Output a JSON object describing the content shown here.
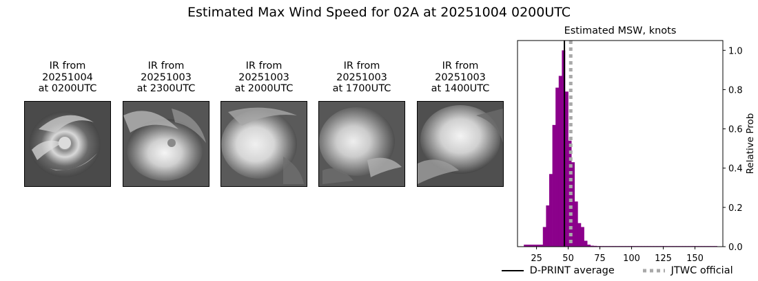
{
  "figure": {
    "title": "Estimated Max Wind Speed for 02A at 20251004 0200UTC"
  },
  "ir_panels": [
    {
      "title": "IR from\n20251004\nat 0200UTC",
      "image": "ir-satellite-image-1"
    },
    {
      "title": "IR from\n20251003\nat 2300UTC",
      "image": "ir-satellite-image-2"
    },
    {
      "title": "IR from\n20251003\nat 2000UTC",
      "image": "ir-satellite-image-3"
    },
    {
      "title": "IR from\n20251003\nat 1700UTC",
      "image": "ir-satellite-image-4"
    },
    {
      "title": "IR from\n20251003\nat 1400UTC",
      "image": "ir-satellite-image-5"
    }
  ],
  "chart_data": {
    "type": "bar",
    "title": "Estimated MSW, knots",
    "xlabel": "",
    "ylabel": "Relative Prob",
    "xlim": [
      10,
      172
    ],
    "ylim": [
      0,
      1.05
    ],
    "xticks": [
      25,
      50,
      75,
      100,
      125,
      150
    ],
    "yticks": [
      0.0,
      0.2,
      0.4,
      0.6,
      0.8,
      1.0
    ],
    "ytick_labels": [
      "0.0",
      "0.2",
      "0.4",
      "0.6",
      "0.8",
      "1.0"
    ],
    "bin_width": 2.5,
    "bins": [
      {
        "x": 15,
        "value": 0.01
      },
      {
        "x": 17.5,
        "value": 0.01
      },
      {
        "x": 20,
        "value": 0.01
      },
      {
        "x": 22.5,
        "value": 0.01
      },
      {
        "x": 25,
        "value": 0.01
      },
      {
        "x": 27.5,
        "value": 0.01
      },
      {
        "x": 30,
        "value": 0.1
      },
      {
        "x": 32.5,
        "value": 0.21
      },
      {
        "x": 35,
        "value": 0.37
      },
      {
        "x": 37.5,
        "value": 0.62
      },
      {
        "x": 40,
        "value": 0.81
      },
      {
        "x": 42.5,
        "value": 0.87
      },
      {
        "x": 45,
        "value": 1.0
      },
      {
        "x": 47.5,
        "value": 0.79
      },
      {
        "x": 50,
        "value": 0.54
      },
      {
        "x": 52.5,
        "value": 0.43
      },
      {
        "x": 55,
        "value": 0.23
      },
      {
        "x": 57.5,
        "value": 0.12
      },
      {
        "x": 60,
        "value": 0.1
      },
      {
        "x": 62.5,
        "value": 0.03
      },
      {
        "x": 65,
        "value": 0.01
      },
      {
        "x": 67.5,
        "value": 0.005
      },
      {
        "x": 70,
        "value": 0.004
      },
      {
        "x": 72.5,
        "value": 0.003
      },
      {
        "x": 75,
        "value": 0.003
      },
      {
        "x": 77.5,
        "value": 0.003
      },
      {
        "x": 80,
        "value": 0.003
      },
      {
        "x": 82.5,
        "value": 0.003
      },
      {
        "x": 85,
        "value": 0.003
      },
      {
        "x": 87.5,
        "value": 0.003
      },
      {
        "x": 90,
        "value": 0.003
      },
      {
        "x": 92.5,
        "value": 0.003
      },
      {
        "x": 95,
        "value": 0.003
      },
      {
        "x": 97.5,
        "value": 0.003
      },
      {
        "x": 100,
        "value": 0.003
      },
      {
        "x": 102.5,
        "value": 0.003
      },
      {
        "x": 105,
        "value": 0.003
      },
      {
        "x": 107.5,
        "value": 0.003
      },
      {
        "x": 110,
        "value": 0.003
      },
      {
        "x": 112.5,
        "value": 0.003
      },
      {
        "x": 115,
        "value": 0.003
      },
      {
        "x": 117.5,
        "value": 0.003
      },
      {
        "x": 120,
        "value": 0.003
      },
      {
        "x": 122.5,
        "value": 0.003
      },
      {
        "x": 125,
        "value": 0.003
      },
      {
        "x": 127.5,
        "value": 0.003
      },
      {
        "x": 130,
        "value": 0.003
      },
      {
        "x": 132.5,
        "value": 0.003
      },
      {
        "x": 135,
        "value": 0.003
      },
      {
        "x": 137.5,
        "value": 0.003
      },
      {
        "x": 140,
        "value": 0.003
      },
      {
        "x": 142.5,
        "value": 0.003
      },
      {
        "x": 145,
        "value": 0.003
      },
      {
        "x": 147.5,
        "value": 0.003
      },
      {
        "x": 150,
        "value": 0.003
      },
      {
        "x": 152.5,
        "value": 0.003
      },
      {
        "x": 155,
        "value": 0.003
      },
      {
        "x": 157.5,
        "value": 0.003
      },
      {
        "x": 160,
        "value": 0.003
      },
      {
        "x": 162.5,
        "value": 0.003
      },
      {
        "x": 165,
        "value": 0.003
      }
    ],
    "bar_color": "#8b008b",
    "vlines": [
      {
        "name": "D-PRINT average",
        "x": 47,
        "color": "#000000",
        "style": "solid"
      },
      {
        "name": "JTWC official",
        "x": 52,
        "color": "#a9a9a9",
        "style": "dotted"
      }
    ],
    "legend": {
      "placement": "bottom",
      "entries": [
        "D-PRINT average",
        "JTWC official"
      ]
    },
    "yaxis_side": "right",
    "grid": false
  }
}
